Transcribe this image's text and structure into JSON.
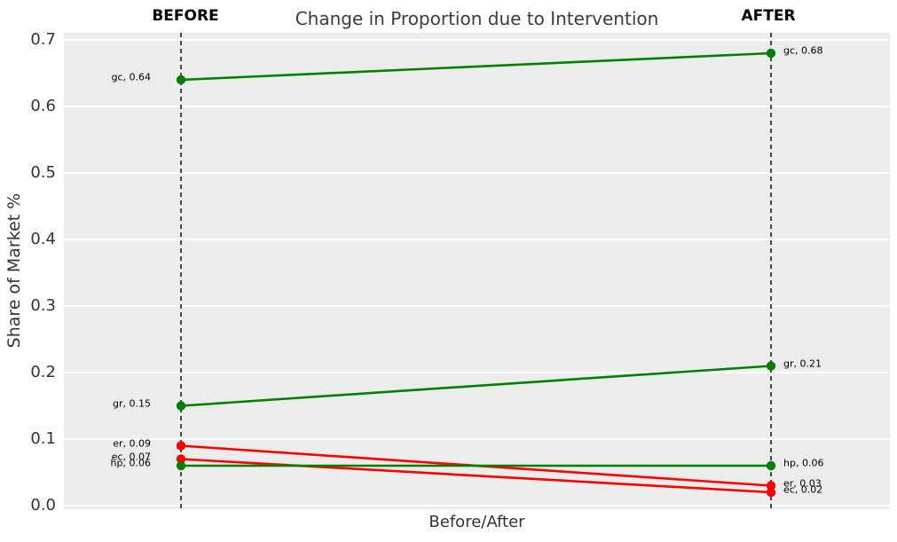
{
  "figure": {
    "title": "Change in Proportion due to Intervention",
    "before_header": "BEFORE",
    "after_header": "AFTER",
    "xlabel": "Before/After",
    "ylabel": "Share of Market %"
  },
  "colors": {
    "green": "#008000",
    "red": "#ff0000",
    "plot_background": "#ececec",
    "gridline": "#ffffff",
    "dashed_line": "#000000",
    "title_text": "#3c3c3c",
    "axis_text": "#333333",
    "annotation_text": "#000000"
  },
  "chart_data": {
    "type": "line",
    "subtype": "slope-chart",
    "title": "Change in Proportion due to Intervention",
    "xlabel": "Before/After",
    "ylabel": "Share of Market %",
    "categories": [
      "BEFORE",
      "AFTER"
    ],
    "ylim": [
      0.0,
      0.7
    ],
    "yticks": [
      0.0,
      0.1,
      0.2,
      0.3,
      0.4,
      0.5,
      0.6,
      0.7
    ],
    "ytick_labels": [
      "0.0",
      "0.1",
      "0.2",
      "0.3",
      "0.4",
      "0.5",
      "0.6",
      "0.7"
    ],
    "grid": true,
    "legend": false,
    "series": [
      {
        "name": "gc",
        "color": "#008000",
        "values": [
          0.64,
          0.68
        ],
        "before_label": "gc, 0.64",
        "after_label": "gc, 0.68"
      },
      {
        "name": "gr",
        "color": "#008000",
        "values": [
          0.15,
          0.21
        ],
        "before_label": "gr, 0.15",
        "after_label": "gr, 0.21"
      },
      {
        "name": "er",
        "color": "#ff0000",
        "values": [
          0.09,
          0.03
        ],
        "before_label": "er, 0.09",
        "after_label": "er, 0.03"
      },
      {
        "name": "ec",
        "color": "#ff0000",
        "values": [
          0.07,
          0.02
        ],
        "before_label": "ec, 0.07",
        "after_label": "ec, 0.02"
      },
      {
        "name": "hp",
        "color": "#008000",
        "values": [
          0.06,
          0.06
        ],
        "before_label": "hp, 0.06",
        "after_label": "hp, 0.06"
      }
    ]
  }
}
